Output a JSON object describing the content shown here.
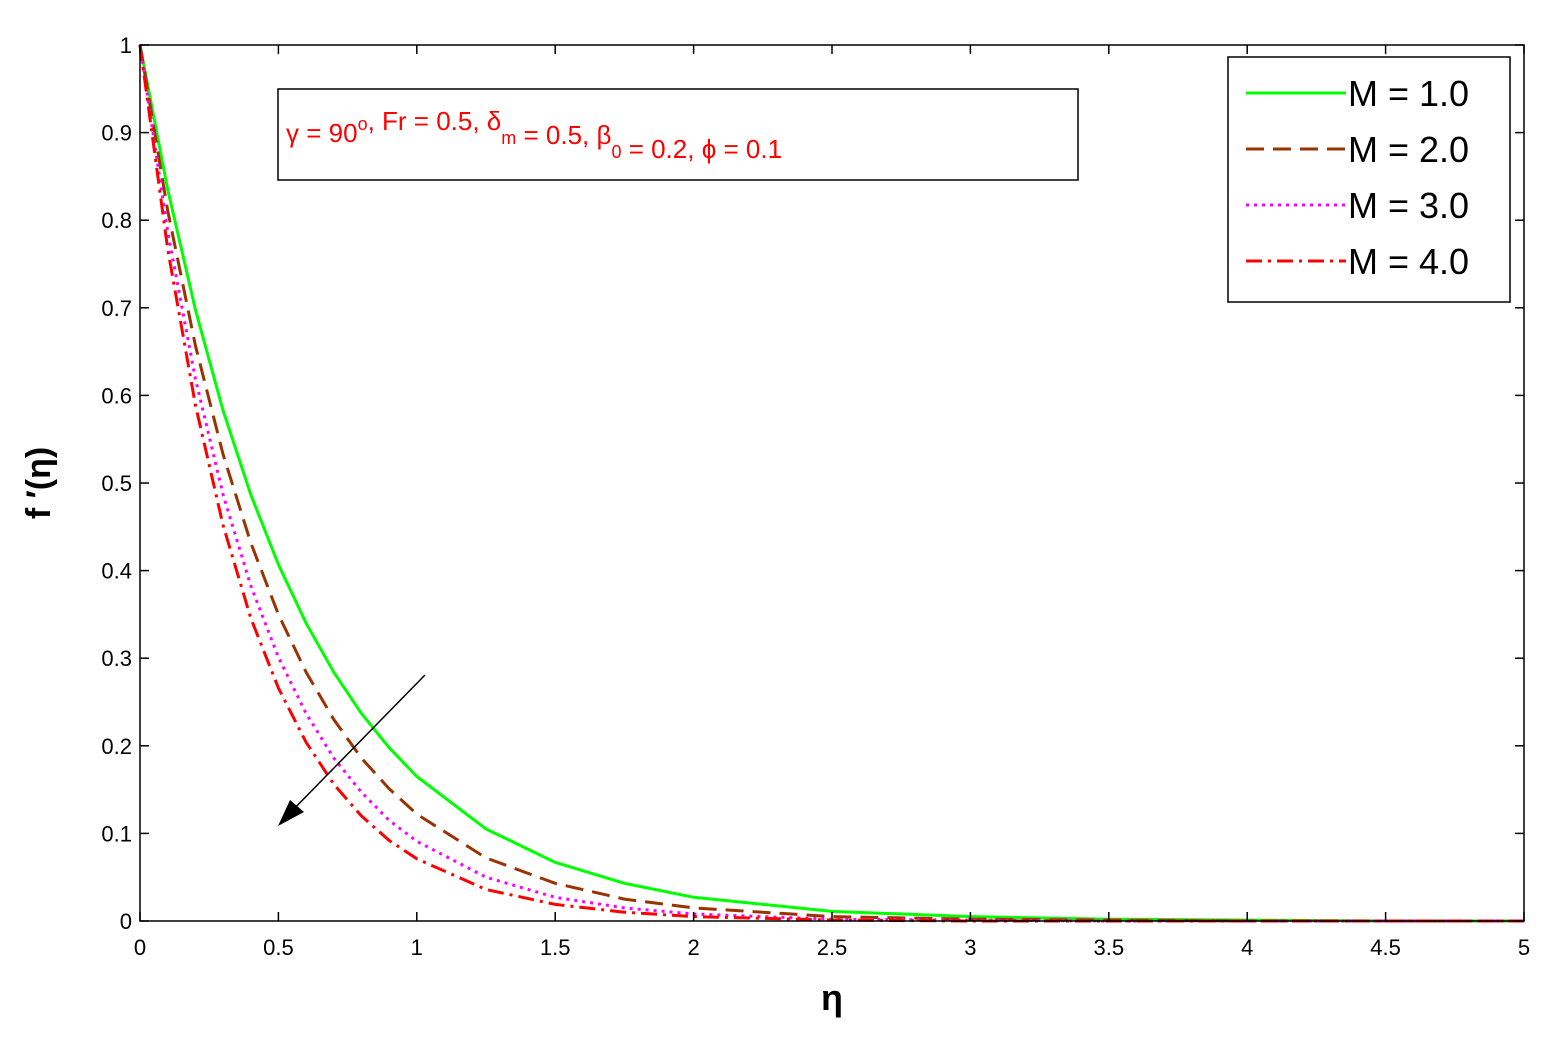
{
  "chart_data": {
    "type": "line",
    "x_label": "η",
    "y_label": "f ′(η)",
    "annotation": [
      {
        "text": "γ = 90"
      },
      {
        "text": "o",
        "script": "sup"
      },
      {
        "text": ", Fr = 0.5, δ"
      },
      {
        "text": "m",
        "script": "sub"
      },
      {
        "text": " = 0.5, β"
      },
      {
        "text": "0",
        "script": "sub"
      },
      {
        "text": " = 0.2, ϕ = 0.1"
      }
    ],
    "annotation_color": "#ff0000",
    "x": [
      0,
      0.1,
      0.2,
      0.3,
      0.4,
      0.5,
      0.6,
      0.7,
      0.8,
      0.9,
      1,
      1.25,
      1.5,
      1.75,
      2,
      2.5,
      3,
      3.5,
      4,
      4.5,
      5
    ],
    "series": [
      {
        "name": "M = 1.0",
        "color": "#00ff00",
        "dash": "solid",
        "values": [
          1,
          0.835,
          0.698,
          0.583,
          0.487,
          0.407,
          0.34,
          0.284,
          0.237,
          0.198,
          0.165,
          0.105,
          0.067,
          0.043,
          0.027,
          0.011,
          0.005,
          0.002,
          0.001,
          0,
          0
        ]
      },
      {
        "name": "M = 2.0",
        "color": "#993300",
        "dash": "dashed",
        "values": [
          1,
          0.811,
          0.657,
          0.533,
          0.432,
          0.35,
          0.284,
          0.23,
          0.186,
          0.151,
          0.122,
          0.072,
          0.043,
          0.025,
          0.015,
          0.005,
          0.002,
          0.001,
          0,
          0,
          0
        ]
      },
      {
        "name": "M = 3.0",
        "color": "#ff00ff",
        "dash": "dotted",
        "values": [
          1,
          0.787,
          0.619,
          0.487,
          0.383,
          0.301,
          0.237,
          0.186,
          0.147,
          0.115,
          0.091,
          0.05,
          0.027,
          0.015,
          0.008,
          0.002,
          0.001,
          0,
          0,
          0,
          0
        ]
      },
      {
        "name": "M = 4.0",
        "color": "#ff0000",
        "dash": "dashdot",
        "values": [
          1,
          0.767,
          0.589,
          0.452,
          0.346,
          0.266,
          0.204,
          0.156,
          0.12,
          0.092,
          0.071,
          0.036,
          0.019,
          0.01,
          0.005,
          0.001,
          0,
          0,
          0,
          0,
          0
        ]
      }
    ],
    "xlim": [
      0,
      5
    ],
    "ylim": [
      0,
      1
    ],
    "xticks": [
      0,
      0.5,
      1,
      1.5,
      2,
      2.5,
      3,
      3.5,
      4,
      4.5,
      5
    ],
    "yticks": [
      0,
      0.1,
      0.2,
      0.3,
      0.4,
      0.5,
      0.6,
      0.7,
      0.8,
      0.9,
      1
    ],
    "grid": false,
    "legend": "upper right"
  }
}
